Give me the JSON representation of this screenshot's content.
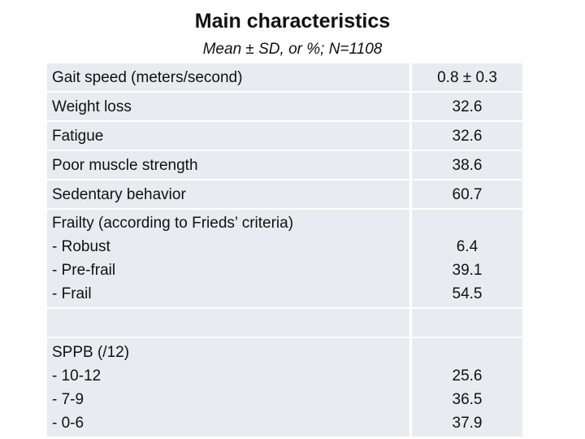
{
  "header": {
    "title": "Main characteristics",
    "subtitle": "Mean ± SD, or %; N=1108"
  },
  "table": {
    "rows": [
      {
        "label": [
          "Gait speed (meters/second)"
        ],
        "value": [
          "0.8 ± 0.3"
        ]
      },
      {
        "label": [
          "Weight loss"
        ],
        "value": [
          "32.6"
        ]
      },
      {
        "label": [
          "Fatigue"
        ],
        "value": [
          "32.6"
        ]
      },
      {
        "label": [
          "Poor muscle strength"
        ],
        "value": [
          "38.6"
        ]
      },
      {
        "label": [
          "Sedentary behavior"
        ],
        "value": [
          "60.7"
        ]
      },
      {
        "label": [
          "Frailty (according to Frieds’ criteria)",
          "- Robust",
          "- Pre-frail",
          "- Frail"
        ],
        "value": [
          "6.4",
          "39.1",
          "54.5"
        ]
      },
      {
        "label": [
          "SPPB (/12)",
          "- 10-12",
          "- 7-9",
          "- 0-6"
        ],
        "value": [
          "25.6",
          "36.5",
          "37.9"
        ]
      }
    ]
  }
}
